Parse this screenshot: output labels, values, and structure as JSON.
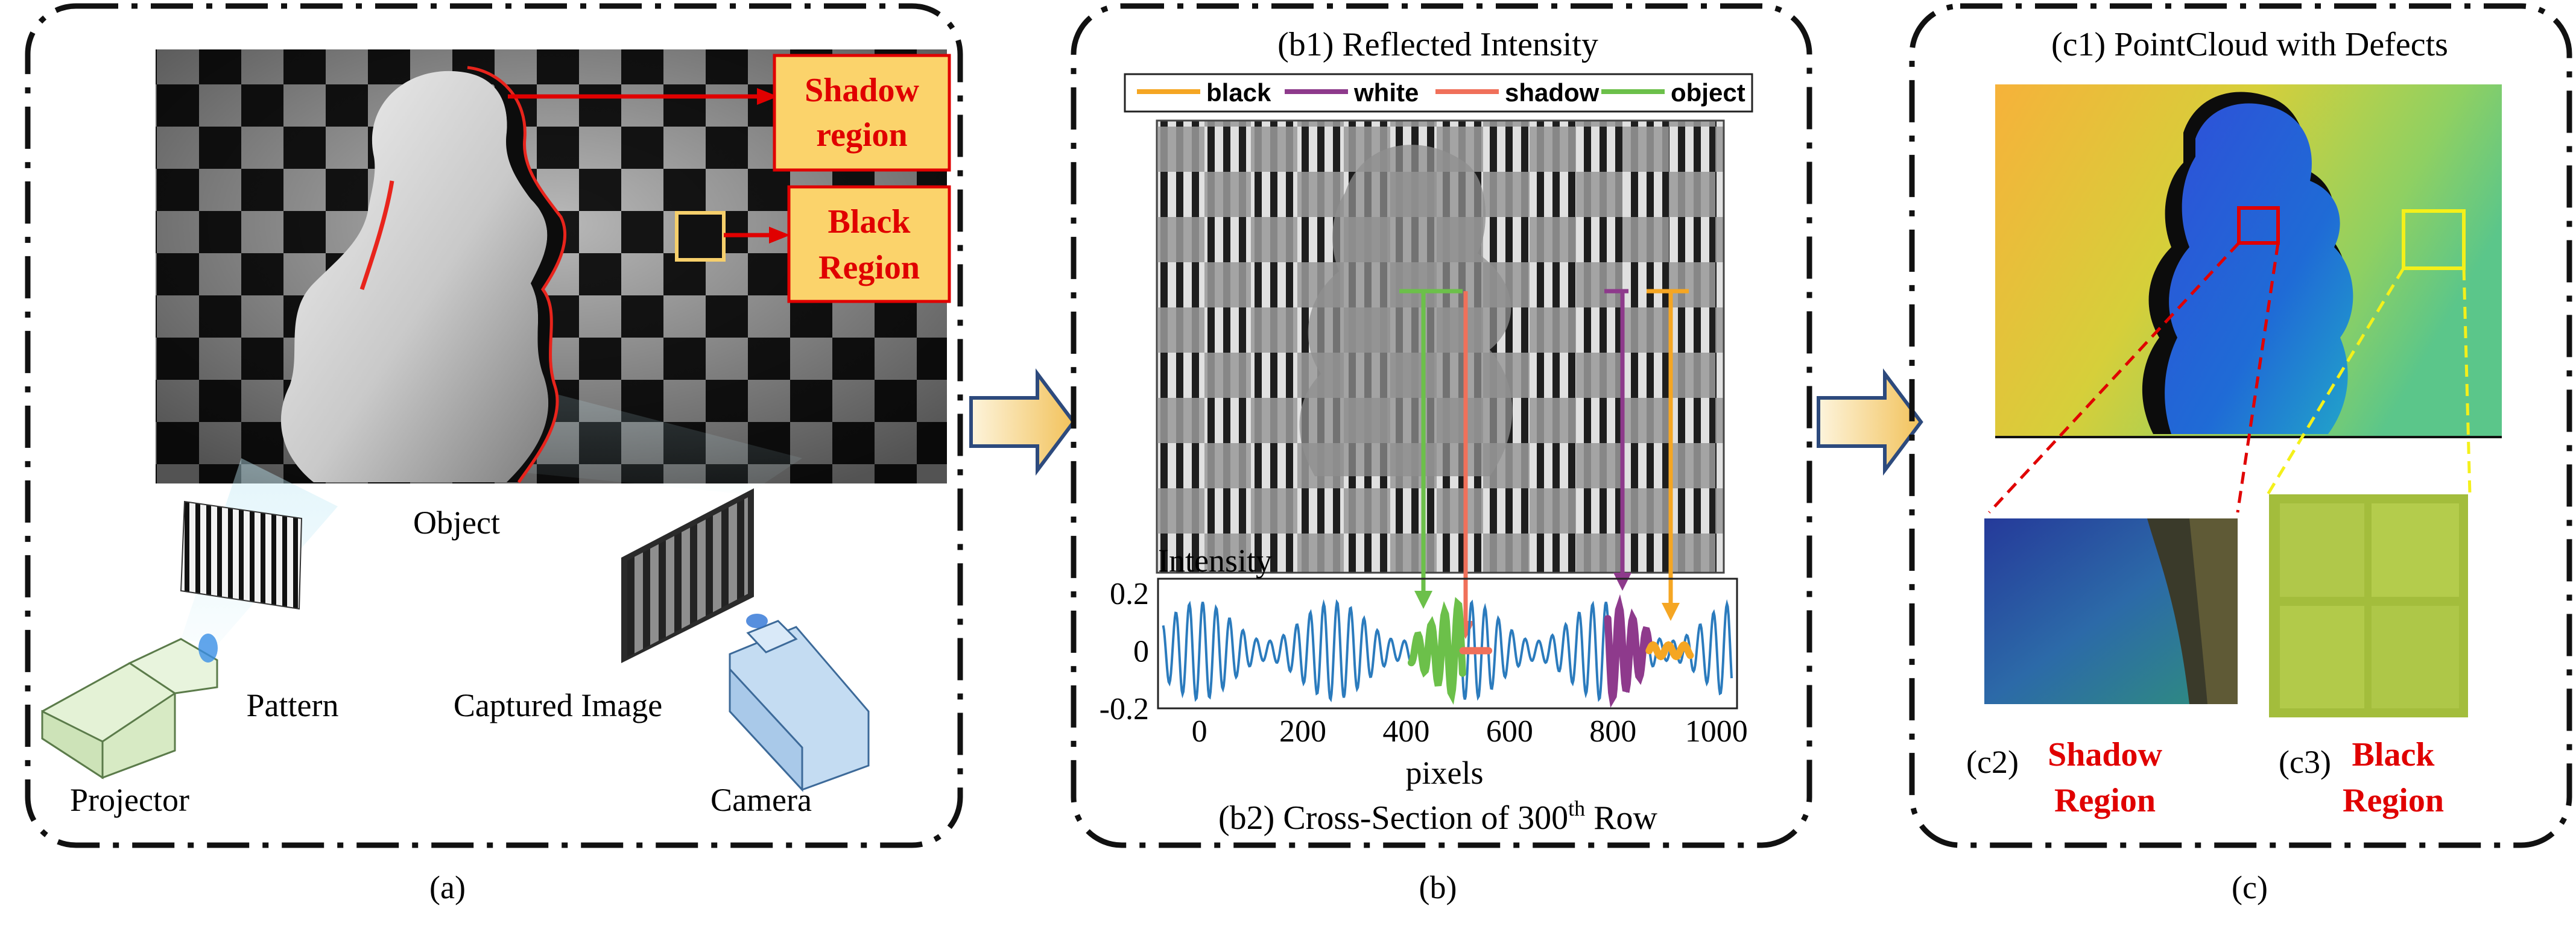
{
  "panel_a": {
    "caption": "(a)",
    "callouts": {
      "shadow": [
        "Shadow",
        "region"
      ],
      "black": [
        "Black",
        "Region"
      ]
    },
    "labels": {
      "object": "Object",
      "pattern": "Pattern",
      "captured": "Captured Image",
      "projector": "Projector",
      "camera": "Camera"
    }
  },
  "panel_b": {
    "caption": "(b)",
    "title": "(b1) Reflected Intensity",
    "legend": [
      "black",
      "white",
      "shadow",
      "object"
    ],
    "bottom_title_prefix": "(b2) Cross-Section of 300",
    "bottom_title_sup": "th",
    "bottom_title_suffix": " Row"
  },
  "panel_c": {
    "caption": "(c)",
    "title": "(c1)  PointCloud with Defects",
    "c2_label": "(c2)",
    "c2_red": [
      "Shadow",
      "Region"
    ],
    "c3_label": "(c3)",
    "c3_red": [
      "Black",
      "Region"
    ]
  },
  "colors": {
    "black": "#f5a623",
    "white": "#8e3a8c",
    "shadow": "#f0705a",
    "object": "#6cc04a",
    "signal": "#2b7bbd",
    "callout_fill": "#fbd36b",
    "callout_text": "#e00000"
  },
  "chart_data": {
    "type": "line",
    "ylabel": "Intensity",
    "xlabel": "pixels",
    "xlim": [
      -80,
      1040
    ],
    "ylim": [
      -0.2,
      0.25
    ],
    "xticks": [
      "0",
      "200",
      "400",
      "600",
      "800",
      "1000"
    ],
    "yticks": [
      "0.2",
      "0",
      "-0.2"
    ],
    "series": [
      {
        "name": "object",
        "x_range": [
          410,
          510
        ]
      },
      {
        "name": "shadow",
        "x_range": [
          510,
          560
        ]
      },
      {
        "name": "white",
        "x_range": [
          790,
          870
        ]
      },
      {
        "name": "black",
        "x_range": [
          870,
          950
        ]
      }
    ]
  }
}
